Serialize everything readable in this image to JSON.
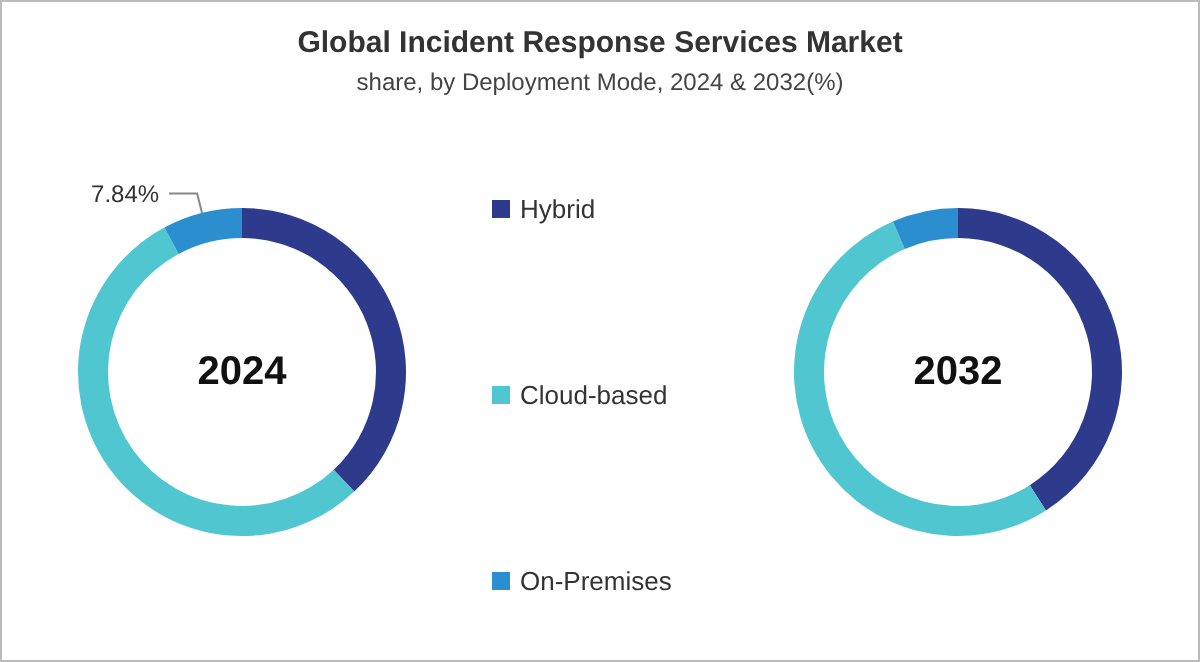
{
  "chart_data": {
    "type": "donut",
    "title": "Global Incident Response Services Market",
    "subtitle": "share, by Deployment Mode, 2024 & 2032(%)",
    "categories": [
      "Hybrid",
      "Cloud-based",
      "On-Premises"
    ],
    "colors": [
      "#2e3a8c",
      "#4fc6d0",
      "#2b8fcf"
    ],
    "legend": "right",
    "series": [
      {
        "name": "2024",
        "values": [
          38,
          54.16,
          7.84
        ],
        "value_labels": [
          null,
          null,
          "7.84%"
        ]
      },
      {
        "name": "2032",
        "values": [
          41,
          52.5,
          6.5
        ]
      }
    ]
  }
}
